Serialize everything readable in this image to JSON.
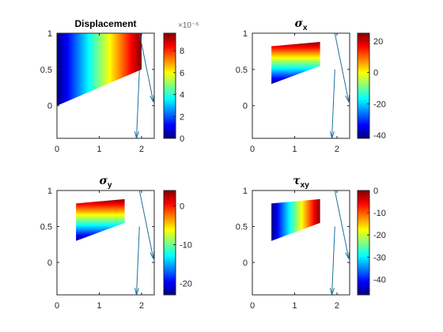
{
  "figure": {
    "background": "#ffffff",
    "axis_color": "#262626",
    "arrow_color": "#1f6f9e"
  },
  "chart_data": [
    {
      "type": "heatmap",
      "title": "Displacement",
      "title_style": "bold",
      "colormap": "jet",
      "xlim": [
        0,
        2.3
      ],
      "ylim": [
        -0.45,
        1.0
      ],
      "xticks": [
        "0",
        "1",
        "2"
      ],
      "yticks": [
        "1",
        "0.5",
        "0"
      ],
      "region": {
        "polygon": [
          [
            0,
            0
          ],
          [
            2.0,
            0.5
          ],
          [
            2.0,
            1.0
          ],
          [
            0,
            1.0
          ]
        ],
        "value_range": [
          0,
          9.6e-06
        ],
        "gradient": "x"
      },
      "arrows": [
        {
          "x1": 1.95,
          "y1": 1.0,
          "x2": 2.28,
          "y2": 0.05
        },
        {
          "x1": 1.95,
          "y1": 0.5,
          "x2": 1.88,
          "y2": -0.45
        }
      ],
      "colorbar": {
        "clim": [
          0,
          9.6e-06
        ],
        "ticks": [
          "8",
          "6",
          "4",
          "2",
          "0"
        ],
        "multiplier": "×10⁻⁶"
      }
    },
    {
      "type": "heatmap",
      "title": "σx",
      "title_symbol": "σ",
      "title_subscript": "x",
      "colormap": "jet",
      "xlim": [
        0,
        2.3
      ],
      "ylim": [
        -0.45,
        1.0
      ],
      "xticks": [
        "0",
        "1",
        "2"
      ],
      "yticks": [
        "1",
        "0.5",
        "0"
      ],
      "region": {
        "polygon": [
          [
            0.45,
            0.3
          ],
          [
            1.6,
            0.55
          ],
          [
            1.6,
            0.88
          ],
          [
            0.45,
            0.82
          ]
        ],
        "value_range": [
          -42,
          25
        ],
        "gradient": "y"
      },
      "arrows": [
        {
          "x1": 1.95,
          "y1": 1.0,
          "x2": 2.28,
          "y2": 0.05
        },
        {
          "x1": 1.95,
          "y1": 0.5,
          "x2": 1.88,
          "y2": -0.45
        }
      ],
      "colorbar": {
        "clim": [
          -42,
          25
        ],
        "ticks": [
          "20",
          "0",
          "-20",
          "-40"
        ]
      }
    },
    {
      "type": "heatmap",
      "title": "σy",
      "title_symbol": "σ",
      "title_subscript": "y",
      "colormap": "jet",
      "xlim": [
        0,
        2.3
      ],
      "ylim": [
        -0.45,
        1.0
      ],
      "xticks": [
        "0",
        "1",
        "2"
      ],
      "yticks": [
        "1",
        "0.5",
        "0"
      ],
      "region": {
        "polygon": [
          [
            0.45,
            0.3
          ],
          [
            1.6,
            0.55
          ],
          [
            1.6,
            0.88
          ],
          [
            0.45,
            0.82
          ]
        ],
        "value_range": [
          -23,
          4
        ],
        "gradient": "y"
      },
      "arrows": [
        {
          "x1": 1.95,
          "y1": 1.0,
          "x2": 2.28,
          "y2": 0.05
        },
        {
          "x1": 1.95,
          "y1": 0.5,
          "x2": 1.88,
          "y2": -0.45
        }
      ],
      "colorbar": {
        "clim": [
          -23,
          4
        ],
        "ticks": [
          "0",
          "-10",
          "-20"
        ]
      }
    },
    {
      "type": "heatmap",
      "title": "τxy",
      "title_symbol": "τ",
      "title_subscript": "xy",
      "colormap": "jet",
      "xlim": [
        0,
        2.3
      ],
      "ylim": [
        -0.45,
        1.0
      ],
      "xticks": [
        "0",
        "1",
        "2"
      ],
      "yticks": [
        "1",
        "0.5",
        "0"
      ],
      "region": {
        "polygon": [
          [
            0.45,
            0.3
          ],
          [
            1.6,
            0.55
          ],
          [
            1.6,
            0.88
          ],
          [
            0.45,
            0.82
          ]
        ],
        "value_range": [
          -47,
          0
        ],
        "gradient": "x"
      },
      "arrows": [
        {
          "x1": 1.95,
          "y1": 1.0,
          "x2": 2.28,
          "y2": 0.05
        },
        {
          "x1": 1.95,
          "y1": 0.5,
          "x2": 1.88,
          "y2": -0.45
        }
      ],
      "colorbar": {
        "clim": [
          -47,
          0
        ],
        "ticks": [
          "0",
          "-10",
          "-20",
          "-30",
          "-40"
        ]
      }
    }
  ]
}
